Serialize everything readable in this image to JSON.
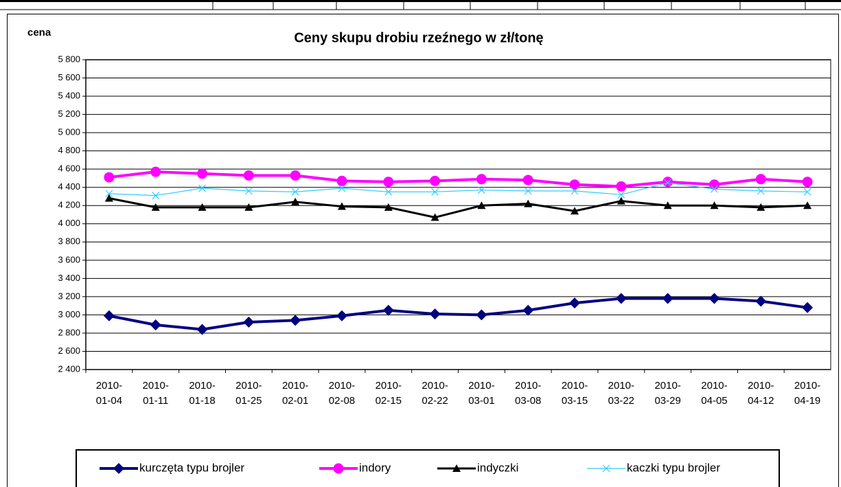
{
  "chart_data": {
    "type": "line",
    "title": "Ceny skupu drobiu rzeźnego w zł/tonę",
    "y_label": "cena",
    "categories": [
      "2010-01-04",
      "2010-01-11",
      "2010-01-18",
      "2010-01-25",
      "2010-02-01",
      "2010-02-08",
      "2010-02-15",
      "2010-02-22",
      "2010-03-01",
      "2010-03-08",
      "2010-03-15",
      "2010-03-22",
      "2010-03-29",
      "2010-04-05",
      "2010-04-12",
      "2010-04-19"
    ],
    "series": [
      {
        "name": "kurczęta typu brojler",
        "color": "#000080",
        "marker": "diamond",
        "values": [
          2990,
          2890,
          2840,
          2920,
          2940,
          2990,
          3050,
          3010,
          3000,
          3050,
          3130,
          3180,
          3180,
          3180,
          3150,
          3080
        ]
      },
      {
        "name": "indory",
        "color": "#ff00ff",
        "marker": "circle",
        "values": [
          4510,
          4570,
          4550,
          4530,
          4530,
          4470,
          4460,
          4470,
          4490,
          4480,
          4430,
          4410,
          4460,
          4430,
          4490,
          4460
        ]
      },
      {
        "name": "indyczki",
        "color": "#000000",
        "marker": "triangle",
        "values": [
          4280,
          4180,
          4180,
          4180,
          4240,
          4190,
          4180,
          4070,
          4200,
          4220,
          4140,
          4250,
          4200,
          4200,
          4180,
          4200
        ]
      },
      {
        "name": "kaczki typu brojler",
        "color": "#33ccff",
        "marker": "x",
        "values": [
          4330,
          4310,
          4390,
          4360,
          4350,
          4390,
          4350,
          4350,
          4370,
          4360,
          4360,
          4320,
          4450,
          4380,
          4360,
          4350
        ]
      }
    ],
    "ylim": [
      2400,
      5800
    ],
    "yticks": [
      {
        "value": 2400,
        "label": "2 400"
      },
      {
        "value": 2600,
        "label": "2 600"
      },
      {
        "value": 2800,
        "label": "2 800"
      },
      {
        "value": 3000,
        "label": "3 000"
      },
      {
        "value": 3200,
        "label": "3 200"
      },
      {
        "value": 3400,
        "label": "3 400"
      },
      {
        "value": 3600,
        "label": "3 600"
      },
      {
        "value": 3800,
        "label": "3 800"
      },
      {
        "value": 4000,
        "label": "4 000"
      },
      {
        "value": 4200,
        "label": "4 200"
      },
      {
        "value": 4400,
        "label": "4 400"
      },
      {
        "value": 4600,
        "label": "4 600"
      },
      {
        "value": 4800,
        "label": "4 800"
      },
      {
        "value": 5000,
        "label": "5 000"
      },
      {
        "value": 5200,
        "label": "5 200"
      },
      {
        "value": 5400,
        "label": "5 400"
      },
      {
        "value": 5600,
        "label": "5 600"
      },
      {
        "value": 5800,
        "label": "5 800"
      }
    ],
    "grid": true,
    "legend": "bottom"
  }
}
